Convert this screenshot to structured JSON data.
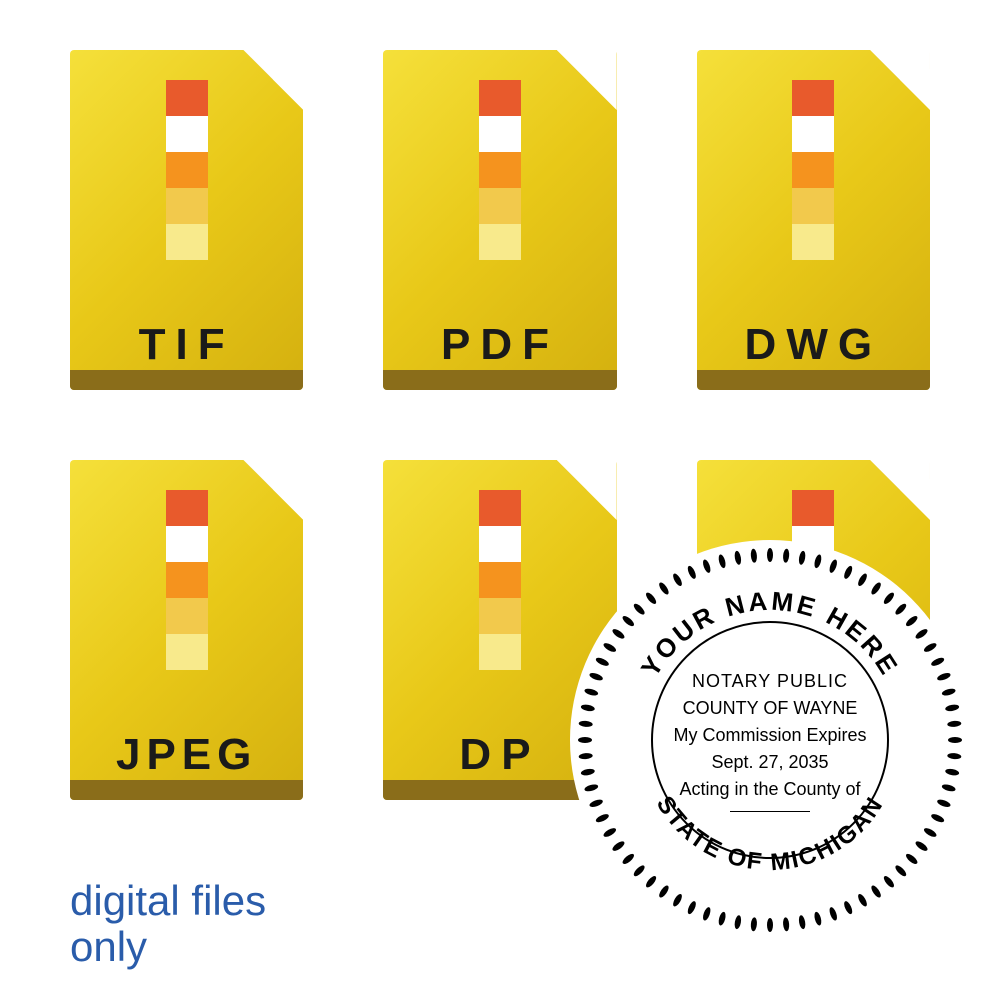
{
  "files": [
    {
      "label": "TIF"
    },
    {
      "label": "PDF"
    },
    {
      "label": "DWG"
    },
    {
      "label": "JPEG"
    },
    {
      "label": "DP"
    },
    {
      "label": ""
    }
  ],
  "color_bar": [
    "#e85a2c",
    "#ffffff",
    "#f5931e",
    "#f2c94c",
    "#f8ea8c"
  ],
  "footer": {
    "line1": "digital files",
    "line2": "only"
  },
  "seal": {
    "top_arc": "YOUR NAME HERE",
    "bottom_arc": "STATE OF MICHIGAN",
    "center": {
      "line1": "NOTARY PUBLIC",
      "line2": "COUNTY OF WAYNE",
      "line3": "My Commission Expires",
      "line4": "Sept. 27, 2035",
      "line5": "Acting in the County of"
    }
  }
}
